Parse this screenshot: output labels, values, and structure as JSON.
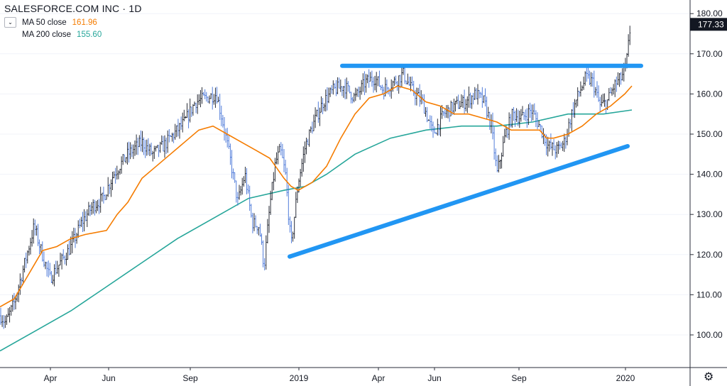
{
  "legend": {
    "title": "SALESFORCE.COM INC · 1D",
    "ma50_label": "MA 50 close",
    "ma50_value": "161.96",
    "ma200_label": "MA 200 close",
    "ma200_value": "155.60"
  },
  "colors": {
    "ma50": "#f57c00",
    "ma200": "#26a69a",
    "candles": "#3f6fd6",
    "candles_dark": "#131722",
    "trendline": "#2196f3",
    "price_tag": "#131722"
  },
  "icons": {
    "settings": "gear-icon",
    "collapse": "chevron-down-icon"
  },
  "chart_data": {
    "type": "ohlc",
    "title": "SALESFORCE.COM INC · 1D",
    "ylim": [
      92,
      182
    ],
    "y_ticks": [
      "100.00",
      "110.00",
      "120.00",
      "130.00",
      "140.00",
      "150.00",
      "160.00",
      "170.00",
      "180.00"
    ],
    "x_ticks": [
      "Apr",
      "Jun",
      "Sep",
      "2019",
      "Apr",
      "Jun",
      "Sep",
      "2020"
    ],
    "last_price": "177.33",
    "price_path": [
      [
        0,
        105
      ],
      [
        8,
        103
      ],
      [
        20,
        108
      ],
      [
        35,
        118
      ],
      [
        48,
        127
      ],
      [
        58,
        121
      ],
      [
        70,
        114
      ],
      [
        85,
        118
      ],
      [
        100,
        122
      ],
      [
        115,
        128
      ],
      [
        130,
        132
      ],
      [
        145,
        134
      ],
      [
        160,
        140
      ],
      [
        180,
        145
      ],
      [
        200,
        148
      ],
      [
        215,
        145
      ],
      [
        230,
        147
      ],
      [
        245,
        150
      ],
      [
        260,
        153
      ],
      [
        275,
        158
      ],
      [
        290,
        159
      ],
      [
        305,
        160
      ],
      [
        315,
        152
      ],
      [
        325,
        143
      ],
      [
        335,
        133
      ],
      [
        345,
        140
      ],
      [
        355,
        128
      ],
      [
        365,
        127
      ],
      [
        372,
        117
      ],
      [
        380,
        132
      ],
      [
        388,
        143
      ],
      [
        395,
        146
      ],
      [
        402,
        140
      ],
      [
        410,
        122
      ],
      [
        420,
        138
      ],
      [
        430,
        147
      ],
      [
        440,
        152
      ],
      [
        455,
        158
      ],
      [
        470,
        161
      ],
      [
        485,
        162
      ],
      [
        500,
        159
      ],
      [
        515,
        163
      ],
      [
        528,
        164
      ],
      [
        540,
        161
      ],
      [
        555,
        163
      ],
      [
        568,
        165
      ],
      [
        580,
        161
      ],
      [
        595,
        158
      ],
      [
        610,
        150
      ],
      [
        625,
        155
      ],
      [
        640,
        157
      ],
      [
        655,
        158
      ],
      [
        670,
        160
      ],
      [
        682,
        158
      ],
      [
        692,
        152
      ],
      [
        700,
        140
      ],
      [
        712,
        150
      ],
      [
        722,
        155
      ],
      [
        735,
        154
      ],
      [
        748,
        156
      ],
      [
        760,
        152
      ],
      [
        772,
        147
      ],
      [
        785,
        146
      ],
      [
        795,
        148
      ],
      [
        805,
        155
      ],
      [
        815,
        160
      ],
      [
        825,
        164
      ],
      [
        835,
        163
      ],
      [
        845,
        157
      ],
      [
        855,
        158
      ],
      [
        865,
        162
      ],
      [
        875,
        164
      ],
      [
        882,
        167
      ],
      [
        888,
        177
      ]
    ],
    "series": [
      {
        "name": "MA 50 close",
        "values": [
          [
            0,
            107
          ],
          [
            20,
            109
          ],
          [
            40,
            115
          ],
          [
            60,
            121
          ],
          [
            80,
            122
          ],
          [
            100,
            124
          ],
          [
            120,
            125
          ],
          [
            150,
            126
          ],
          [
            165,
            130
          ],
          [
            180,
            133
          ],
          [
            200,
            139
          ],
          [
            220,
            142
          ],
          [
            240,
            145
          ],
          [
            260,
            148
          ],
          [
            280,
            151
          ],
          [
            300,
            152
          ],
          [
            320,
            150
          ],
          [
            340,
            148
          ],
          [
            360,
            146
          ],
          [
            380,
            144
          ],
          [
            400,
            139
          ],
          [
            410,
            137
          ],
          [
            420,
            136
          ],
          [
            440,
            138
          ],
          [
            460,
            142
          ],
          [
            480,
            149
          ],
          [
            500,
            155
          ],
          [
            520,
            159
          ],
          [
            540,
            160
          ],
          [
            560,
            162
          ],
          [
            580,
            161
          ],
          [
            600,
            158
          ],
          [
            620,
            157
          ],
          [
            640,
            155
          ],
          [
            660,
            155
          ],
          [
            680,
            154
          ],
          [
            700,
            153
          ],
          [
            710,
            152
          ],
          [
            720,
            151
          ],
          [
            740,
            151
          ],
          [
            760,
            151
          ],
          [
            770,
            149
          ],
          [
            780,
            149
          ],
          [
            800,
            150
          ],
          [
            820,
            152
          ],
          [
            840,
            155
          ],
          [
            860,
            157
          ],
          [
            880,
            160
          ],
          [
            890,
            162
          ]
        ]
      },
      {
        "name": "MA 200 close",
        "values": [
          [
            0,
            96
          ],
          [
            50,
            101
          ],
          [
            100,
            106
          ],
          [
            150,
            112
          ],
          [
            200,
            118
          ],
          [
            250,
            124
          ],
          [
            300,
            129
          ],
          [
            350,
            134
          ],
          [
            400,
            136
          ],
          [
            430,
            137
          ],
          [
            460,
            140
          ],
          [
            500,
            145
          ],
          [
            550,
            149
          ],
          [
            600,
            151
          ],
          [
            650,
            152
          ],
          [
            700,
            152
          ],
          [
            750,
            153
          ],
          [
            800,
            155
          ],
          [
            850,
            155
          ],
          [
            890,
            156
          ]
        ]
      }
    ],
    "annotations": [
      {
        "type": "trendline",
        "x1": 482,
        "y1": 167,
        "x2": 903,
        "y2": 167
      },
      {
        "type": "trendline",
        "x1": 408,
        "y1": 119.5,
        "x2": 884,
        "y2": 147
      }
    ]
  }
}
